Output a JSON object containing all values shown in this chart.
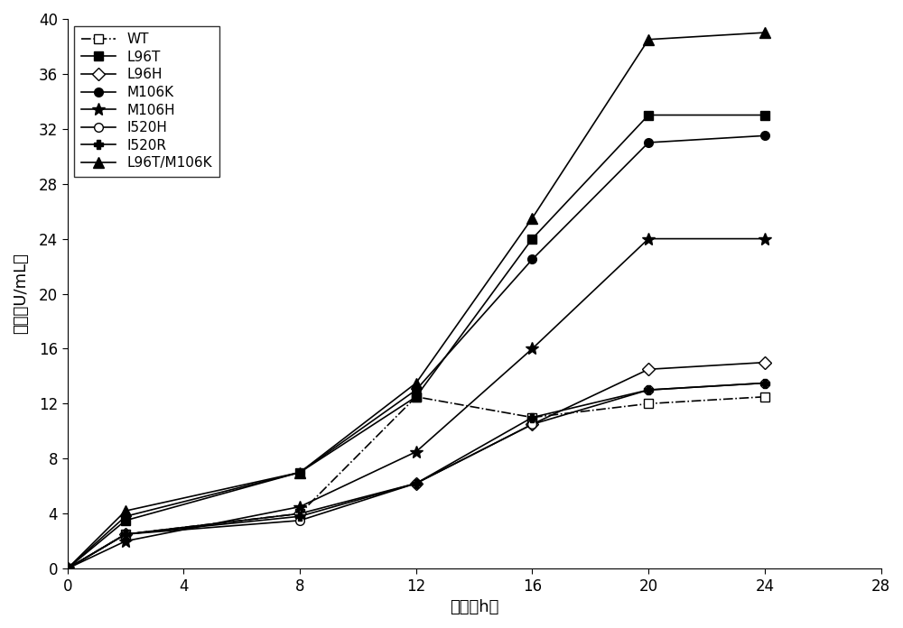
{
  "x": [
    0,
    2,
    8,
    12,
    16,
    20,
    24
  ],
  "series": [
    {
      "label": "WT",
      "values": [
        0,
        2.5,
        4.0,
        12.5,
        11.0,
        12.0,
        12.5
      ],
      "color": "#000000",
      "linestyle": "-.",
      "marker": "s",
      "markerfacecolor": "white",
      "linewidth": 1.2,
      "markersize": 7
    },
    {
      "label": "L96T",
      "values": [
        0,
        3.5,
        7.0,
        12.5,
        24.0,
        33.0,
        33.0
      ],
      "color": "#000000",
      "linestyle": "-",
      "marker": "s",
      "markerfacecolor": "black",
      "linewidth": 1.2,
      "markersize": 7
    },
    {
      "label": "L96H",
      "values": [
        0,
        2.5,
        4.0,
        6.2,
        10.5,
        14.5,
        15.0
      ],
      "color": "#000000",
      "linestyle": "-",
      "marker": "D",
      "markerfacecolor": "white",
      "linewidth": 1.2,
      "markersize": 7
    },
    {
      "label": "M106K",
      "values": [
        0,
        3.8,
        7.0,
        13.0,
        22.5,
        31.0,
        31.5
      ],
      "color": "#000000",
      "linestyle": "-",
      "marker": "o",
      "markerfacecolor": "black",
      "linewidth": 1.2,
      "markersize": 7
    },
    {
      "label": "M106H",
      "values": [
        0,
        2.0,
        4.5,
        8.5,
        16.0,
        24.0,
        24.0
      ],
      "color": "#000000",
      "linestyle": "-",
      "marker": "*",
      "markerfacecolor": "black",
      "linewidth": 1.2,
      "markersize": 10
    },
    {
      "label": "I520H",
      "values": [
        0,
        2.5,
        3.5,
        6.2,
        10.5,
        13.0,
        13.5
      ],
      "color": "#000000",
      "linestyle": "-",
      "marker": "o",
      "markerfacecolor": "white",
      "linewidth": 1.2,
      "markersize": 7
    },
    {
      "label": "I520R",
      "values": [
        0,
        2.5,
        3.8,
        6.2,
        11.0,
        13.0,
        13.5
      ],
      "color": "#000000",
      "linestyle": "-",
      "marker": "P",
      "markerfacecolor": "black",
      "linewidth": 1.2,
      "markersize": 7
    },
    {
      "label": "L96T/M106K",
      "values": [
        0,
        4.2,
        7.0,
        13.5,
        25.5,
        38.5,
        39.0
      ],
      "color": "#000000",
      "linestyle": "-",
      "marker": "^",
      "markerfacecolor": "black",
      "linewidth": 1.2,
      "markersize": 8
    }
  ],
  "xlim": [
    0,
    28
  ],
  "ylim": [
    0,
    40
  ],
  "xticks": [
    0,
    4,
    8,
    12,
    16,
    20,
    24,
    28
  ],
  "yticks": [
    0,
    4,
    8,
    12,
    16,
    20,
    24,
    28,
    32,
    36,
    40
  ],
  "xlabel": "时间（h）",
  "ylabel": "酶活（U/mL）",
  "background_color": "#ffffff",
  "legend_loc": "upper left",
  "figsize": [
    10.0,
    6.96
  ],
  "dpi": 100
}
